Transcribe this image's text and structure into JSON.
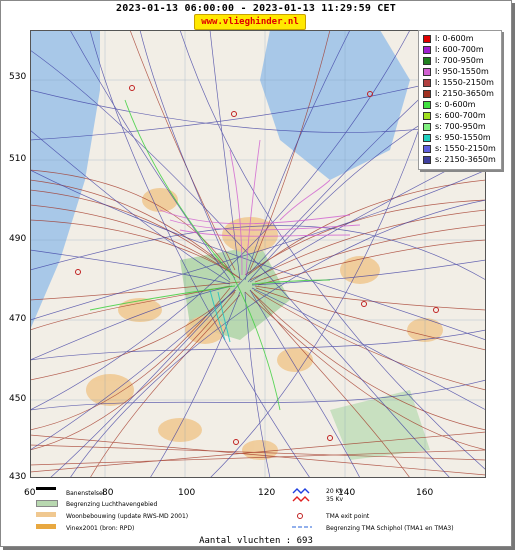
{
  "header": {
    "title": "2023-01-13 06:00:00 - 2023-01-13 11:29:59 CET",
    "url": "www.vlieghinder.nl"
  },
  "axes": {
    "y_ticks": [
      "530",
      "510",
      "490",
      "470",
      "450",
      "430"
    ],
    "x_ticks": [
      "60",
      "80",
      "100",
      "120",
      "140",
      "160"
    ]
  },
  "legend": [
    {
      "label": "l: 0-600m",
      "color": "#e00000"
    },
    {
      "label": "l: 600-700m",
      "color": "#a020d0"
    },
    {
      "label": "l: 700-950m",
      "color": "#208020"
    },
    {
      "label": "l: 950-1550m",
      "color": "#d060d0"
    },
    {
      "label": "l: 1550-2150m",
      "color": "#b04040"
    },
    {
      "label": "l: 2150-3650m",
      "color": "#a03020"
    },
    {
      "label": "s: 0-600m",
      "color": "#40e040"
    },
    {
      "label": "s: 600-700m",
      "color": "#a0e020"
    },
    {
      "label": "s: 700-950m",
      "color": "#80f080"
    },
    {
      "label": "s: 950-1550m",
      "color": "#20d0c0"
    },
    {
      "label": "s: 1550-2150m",
      "color": "#6060e0"
    },
    {
      "label": "s: 2150-3650m",
      "color": "#4040a0"
    }
  ],
  "map_legend": {
    "runway": "Banenstelsel",
    "airport_boundary": "Begrenzing Luchthavengebied",
    "housing": "Woonbebouwing (update RWS-MD 2001)",
    "vinex": "Vinex2001 (bron: RPD)",
    "kv_20": "20 Kv",
    "kv_35": "35 Kv",
    "tma_exit": "TMA exit point",
    "tma_boundary": "Begrenzing TMA Schiphol  (TMA1 en TMA3)"
  },
  "footer": {
    "count_label": "Aantal vluchten : 693"
  },
  "colors": {
    "sea": "#a8c8e8",
    "land": "#f2eee6",
    "urban": "#f0c890",
    "green_area": "#b8d8b0",
    "landing_track": "#a03020",
    "start_track": "#4040a0"
  }
}
